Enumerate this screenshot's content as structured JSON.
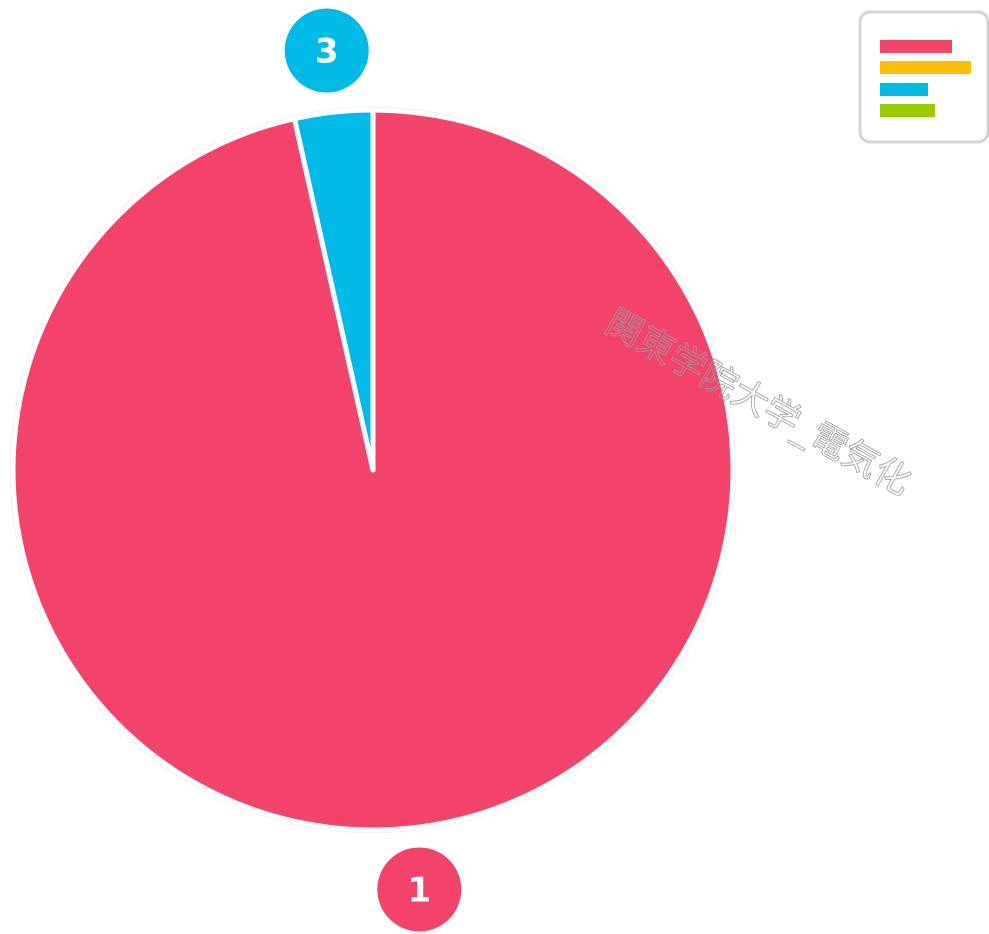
{
  "chart_data": {
    "type": "pie",
    "categories": [
      "1",
      "3"
    ],
    "values": [
      96.5,
      3.5
    ],
    "colors": [
      "#f4436b",
      "#00bbe8"
    ],
    "watermark": "関東学院大学_電気化"
  }
}
